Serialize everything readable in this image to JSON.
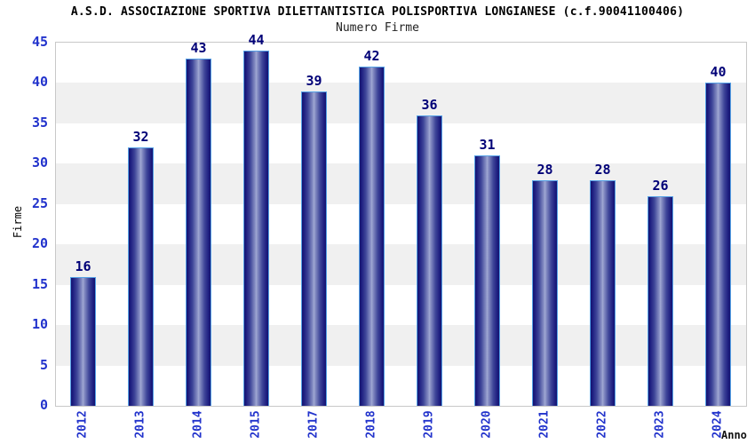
{
  "chart_data": {
    "type": "bar",
    "title": "A.S.D. ASSOCIAZIONE SPORTIVA DILETTANTISTICA POLISPORTIVA LONGIANESE (c.f.90041100406)",
    "subtitle": "Numero Firme",
    "xlabel": "Anno",
    "ylabel": "Firme",
    "categories": [
      "2012",
      "2013",
      "2014",
      "2015",
      "2017",
      "2018",
      "2019",
      "2020",
      "2021",
      "2022",
      "2023",
      "2024"
    ],
    "values": [
      16,
      32,
      43,
      44,
      39,
      42,
      36,
      31,
      28,
      28,
      26,
      40
    ],
    "ylim": [
      0,
      45
    ],
    "ytick_step": 5,
    "grid": "horizontal-alternating-bands",
    "legend": "none",
    "colors": {
      "bar_edge": "#131370",
      "bar_mid": "#a2aad4",
      "bar_border": "#55a1e6",
      "tick_label": "#2233cc",
      "value_label": "#000077",
      "band_gray": "#f0f0f0",
      "band_white": "#ffffff",
      "plot_border": "#c8c8c8",
      "title_color": "#000000",
      "subtitle_color": "#222222",
      "axis_title_color": "#000000"
    }
  }
}
